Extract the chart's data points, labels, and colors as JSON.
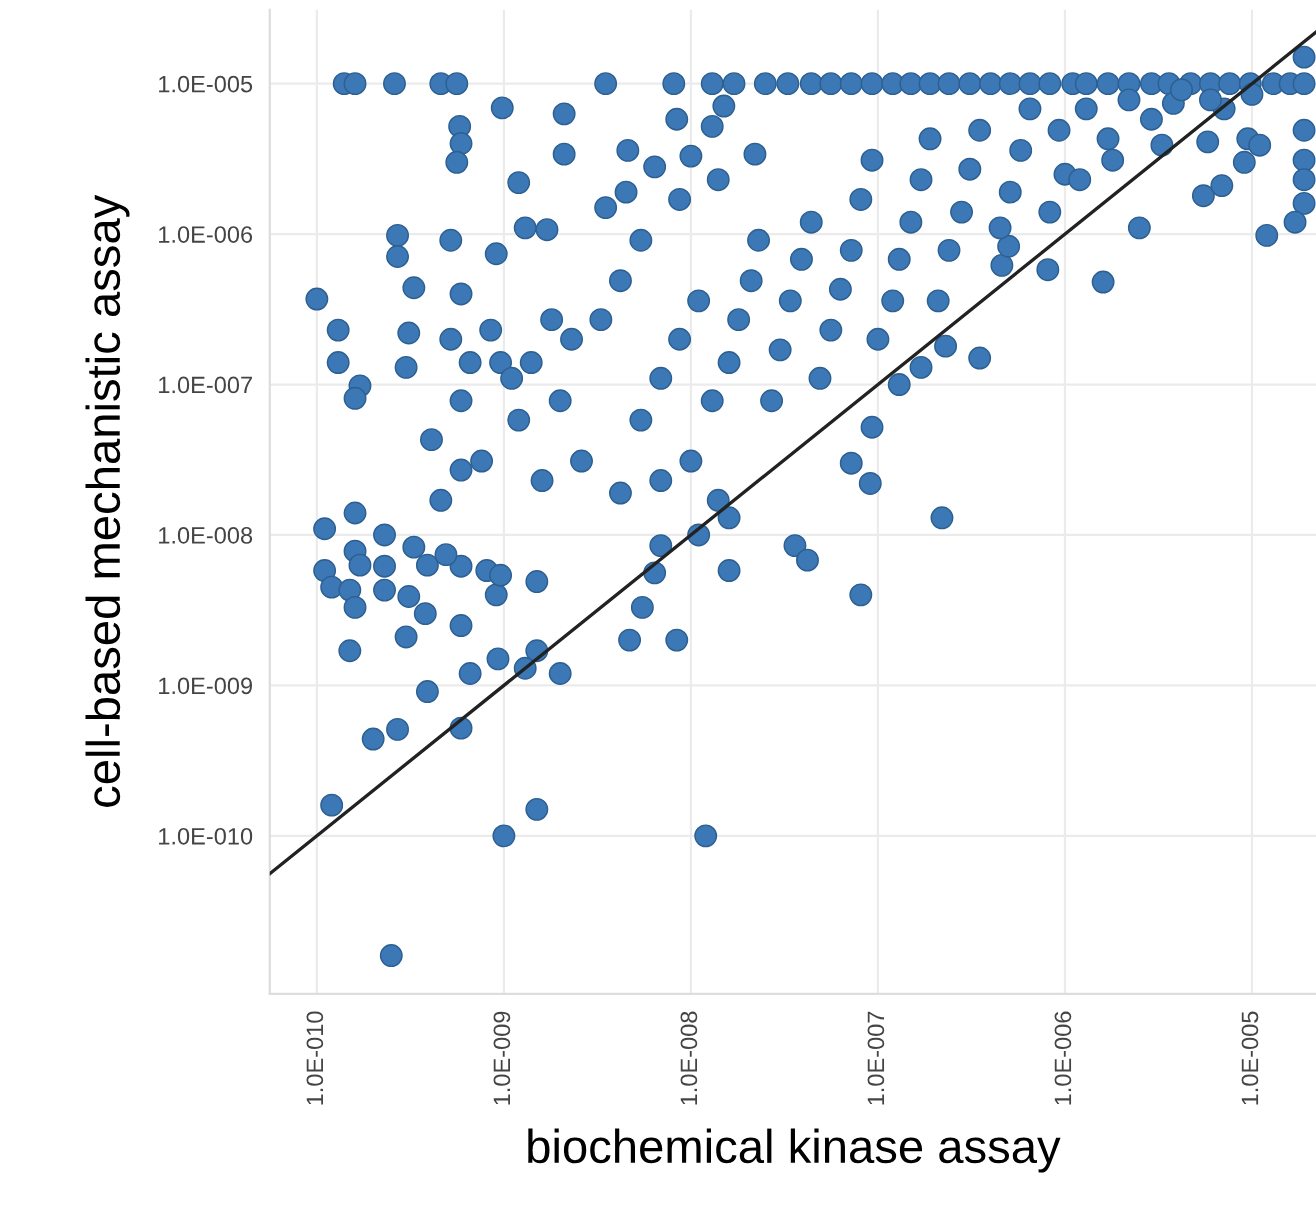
{
  "chart_data": {
    "type": "scatter",
    "xlabel": "biochemical kinase assay",
    "ylabel": "cell-based mechanistic assay",
    "log": "xy",
    "grid": true,
    "xlim": [
      5.6e-11,
      2.2e-05
    ],
    "ylim": [
      8.9e-12,
      3.1e-05
    ],
    "xticks": [
      {
        "value": 1e-10,
        "label": "1.0E-010"
      },
      {
        "value": 1e-09,
        "label": "1.0E-009"
      },
      {
        "value": 1e-08,
        "label": "1.0E-008"
      },
      {
        "value": 1e-07,
        "label": "1.0E-007"
      },
      {
        "value": 1e-06,
        "label": "1.0E-006"
      },
      {
        "value": 1e-05,
        "label": "1.0E-005"
      }
    ],
    "yticks": [
      {
        "value": 1e-10,
        "label": "1.0E-010"
      },
      {
        "value": 1e-09,
        "label": "1.0E-009"
      },
      {
        "value": 1e-08,
        "label": "1.0E-008"
      },
      {
        "value": 1e-07,
        "label": "1.0E-007"
      },
      {
        "value": 1e-06,
        "label": "1.0E-006"
      },
      {
        "value": 1e-05,
        "label": "1.0E-005"
      }
    ],
    "series": [
      {
        "marker": "circle",
        "color": "#3b78b5",
        "x": [
          1.4e-10,
          1.6e-10,
          2.6e-10,
          4.6e-10,
          5.6e-10,
          3.5e-09,
          8.1e-09,
          1.3e-08,
          1.7e-08,
          2.5e-08,
          3.3e-08,
          4.4e-08,
          5.6e-08,
          7.2e-08,
          9.3e-08,
          1.2e-07,
          1.5e-07,
          1.9e-07,
          2.4e-07,
          3.1e-07,
          4e-07,
          5.1e-07,
          6.5e-07,
          8.3e-07,
          1.1e-06,
          1.3e-06,
          1.7e-06,
          2.2e-06,
          2.9e-06,
          3.6e-06,
          4.7e-06,
          6e-06,
          7.6e-06,
          9.8e-06,
          1.3e-05,
          1.6e-05,
          1.9e-05,
          5.8e-10,
          5.9e-10,
          5.6e-10,
          9.8e-10,
          2.1e-09,
          2.1e-09,
          1.2e-09,
          2.7e-10,
          2.7e-10,
          5.2e-10,
          1e-10,
          1.3e-10,
          1.3e-10,
          3.3e-10,
          1.7e-10,
          1.6e-10,
          3e-10,
          3.1e-10,
          5.9e-10,
          9.1e-10,
          1.3e-09,
          1.7e-09,
          3.5e-09,
          4.6e-09,
          6.4e-09,
          8.4e-09,
          1e-08,
          1.3e-08,
          1.5e-08,
          2.2e-08,
          4.5e-09,
          1.1e-10,
          1.6e-10,
          1.1e-10,
          1.2e-10,
          1.5e-10,
          1.6e-10,
          1.6e-10,
          1.7e-10,
          2.3e-10,
          2.3e-10,
          2.3e-10,
          3.1e-10,
          3e-10,
          1.5e-10,
          3.9e-10,
          2.7e-10,
          2e-10,
          5.9e-10,
          6.6e-10,
          9.3e-10,
          1.3e-09,
          1.5e-09,
          2e-09,
          1.5e-09,
          1e-09,
          1.2e-10,
          2.5e-10,
          1.2e-08,
          4.7e-09,
          8.4e-09,
          5.5e-09,
          6.4e-09,
          6.9e-09,
          1.1e-08,
          1.6e-08,
          1.6e-08,
          3.6e-08,
          4.2e-08,
          8.1e-08,
          2.2e-07,
          3.8e-10,
          5.9e-10,
          9.1e-10,
          1.5e-09,
          3.9e-10,
          5.9e-10,
          8.1e-10,
          9.6e-10,
          3.3e-10,
          4.9e-10,
          1.9e-05,
          1.9e-05,
          1.9e-05,
          1.9e-05,
          1.9e-05,
          1.7e-05,
          1.2e-05,
          9.1e-06,
          9.5e-06,
          1.1e-05,
          5.5e-06,
          6.9e-06,
          5.8e-06,
          3.3e-06,
          2.5e-06,
          1.6e-06,
          8.1e-07,
          3.5e-07,
          2.3e-07,
          1.7e-07,
          1.3e-07,
          9.3e-08,
          7.2e-08,
          9.1e-08,
          4.6e-07,
          5e-07,
          1e-06,
          1.8e-06,
          3.8e-06,
          7.1e-06,
          1e-05,
          5.4e-09,
          6.9e-09,
          8.7e-09,
          1.1e-08,
          1.3e-08,
          1.6e-08,
          1.8e-08,
          2.1e-08,
          2.3e-08,
          2.7e-08,
          3e-08,
          3.4e-08,
          3.9e-08,
          4.4e-08,
          4.9e-08,
          5.6e-08,
          6.3e-08,
          7.2e-08,
          8.1e-08,
          9.3e-08,
          1e-07,
          1.2e-07,
          1.3e-07,
          1.5e-07,
          1.7e-07,
          1.9e-07,
          2.1e-07,
          2.4e-07,
          2.8e-07,
          3.1e-07,
          3.5e-07,
          4.5e-07,
          5.1e-07,
          5.8e-07,
          6.5e-07,
          8.3e-07,
          9.3e-07,
          1.2e-06,
          1.3e-06,
          1.7e-06,
          2.2e-06,
          2.9e-06,
          4.2e-06,
          6e-06,
          3.3e-09,
          4.2e-09,
          2.6e-09,
          2e-09,
          1.2e-09,
          9.6e-10,
          7.6e-10,
          5.9e-10,
          4.6e-10,
          1.6e-09,
          2.3e-09,
          4.2e-09,
          6.9e-09,
          1e-08,
          1.4e-08,
          5.4e-09,
          8.7e-09,
          1.4e-08,
          5.2e-10,
          6.6e-10,
          8.5e-10,
          1.1e-09,
          4.1e-10,
          5.9e-10,
          1.4e-09,
          1.8e-09
        ],
        "values": [
          1e-05,
          1e-05,
          1e-05,
          1e-05,
          1e-05,
          1e-05,
          1e-05,
          1e-05,
          1e-05,
          1e-05,
          1e-05,
          1e-05,
          1e-05,
          1e-05,
          1e-05,
          1e-05,
          1e-05,
          1e-05,
          1e-05,
          1e-05,
          1e-05,
          1e-05,
          1e-05,
          1e-05,
          1e-05,
          1e-05,
          1e-05,
          1e-05,
          1e-05,
          1e-05,
          1e-05,
          1e-05,
          1e-05,
          1e-05,
          1e-05,
          1e-05,
          1e-05,
          5.2e-06,
          4e-06,
          3e-06,
          6.9e-06,
          6.3e-06,
          3.4e-06,
          2.2e-06,
          9.8e-07,
          7.1e-07,
          9.1e-07,
          3.7e-07,
          2.3e-07,
          1.4e-07,
          4.4e-07,
          9.8e-08,
          8.1e-08,
          1.3e-07,
          2.2e-07,
          4e-07,
          7.4e-07,
          1.1e-06,
          1.07e-06,
          1.5e-06,
          3.6e-06,
          2.8e-06,
          5.8e-06,
          3.3e-06,
          5.2e-06,
          7.1e-06,
          3.4e-06,
          1.9e-06,
          1.1e-08,
          1.4e-08,
          5.8e-09,
          4.5e-09,
          4.3e-09,
          3.3e-09,
          7.8e-09,
          6.3e-09,
          1e-08,
          6.2e-09,
          4.3e-09,
          3.9e-09,
          2.1e-09,
          1.7e-09,
          9.1e-10,
          5.1e-10,
          4.4e-10,
          5.2e-10,
          1.2e-09,
          1.5e-09,
          1.3e-09,
          1.7e-09,
          1.2e-09,
          1.5e-10,
          1e-10,
          1.6e-10,
          1.6e-11,
          1e-10,
          2e-09,
          2e-09,
          3.3e-09,
          5.6e-09,
          8.5e-09,
          1e-08,
          5.8e-09,
          1.3e-08,
          8.5e-09,
          6.8e-09,
          4e-09,
          1.3e-08,
          3e-09,
          2.5e-09,
          4e-09,
          4.9e-09,
          6.3e-09,
          6.2e-09,
          5.8e-09,
          5.4e-09,
          8.3e-09,
          7.4e-09,
          1.5e-05,
          4.9e-06,
          3.1e-06,
          2.3e-06,
          1.6e-06,
          1.2e-06,
          9.8e-07,
          3e-06,
          4.3e-06,
          3.9e-06,
          1.8e-06,
          2.1e-06,
          4.1e-06,
          3.9e-06,
          1.1e-06,
          4.8e-07,
          5.8e-07,
          1.5e-07,
          1.8e-07,
          1.3e-07,
          1e-07,
          5.2e-08,
          3e-08,
          2.2e-08,
          6.2e-07,
          8.3e-07,
          2.5e-06,
          3.1e-06,
          7.4e-06,
          6.8e-06,
          8.5e-06,
          5.8e-08,
          1.1e-07,
          2e-07,
          3.6e-07,
          7.8e-08,
          1.4e-07,
          2.7e-07,
          4.9e-07,
          9.1e-07,
          7.8e-08,
          1.7e-07,
          3.6e-07,
          6.8e-07,
          1.2e-06,
          1.1e-07,
          2.3e-07,
          4.3e-07,
          7.8e-07,
          1.7e-06,
          3.1e-06,
          2e-07,
          3.6e-07,
          6.8e-07,
          1.2e-06,
          2.3e-06,
          4.3e-06,
          3.6e-07,
          7.8e-07,
          1.4e-06,
          2.7e-06,
          4.9e-06,
          1.1e-06,
          1.9e-06,
          3.6e-06,
          6.8e-06,
          1.4e-06,
          4.9e-06,
          2.3e-06,
          6.8e-06,
          4.3e-06,
          7.8e-06,
          5.8e-06,
          9.1e-06,
          7.8e-06,
          2.7e-07,
          4.9e-07,
          3.1e-08,
          7.8e-08,
          5.8e-08,
          1.4e-07,
          3.1e-08,
          7.8e-08,
          1.7e-08,
          2.3e-08,
          2e-07,
          1.9e-08,
          2.3e-08,
          3.1e-08,
          1.7e-08,
          9.1e-07,
          1.7e-06,
          2.3e-06,
          2e-07,
          1.4e-07,
          2.3e-07,
          1.1e-07,
          4.3e-08,
          2.7e-08,
          1.4e-07,
          2.7e-07
        ]
      },
      {
        "type": "line",
        "marker": "none",
        "color": "#222222",
        "x": [
          5.6e-11,
          2.2e-05
        ],
        "values": [
          5.6e-11,
          2.2e-05
        ]
      }
    ]
  }
}
